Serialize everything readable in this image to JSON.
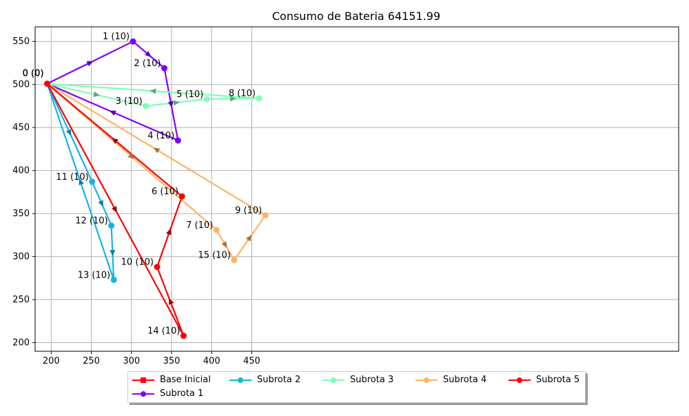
{
  "chart_data": {
    "type": "line",
    "title": "Consumo de Bateria 64151.99",
    "xlabel": "",
    "ylabel": "",
    "xlim": [
      180,
      982
    ],
    "ylim": [
      190,
      567
    ],
    "x_ticks": [
      200,
      250,
      300,
      350,
      400,
      450
    ],
    "y_ticks": [
      200,
      250,
      300,
      350,
      400,
      450,
      500,
      550
    ],
    "grid": true,
    "legend_position": "bottom-center",
    "base": {
      "name": "Base Inicial",
      "color": "#ff0000",
      "x": 195,
      "y": 501,
      "labels": [
        "0 (0)",
        "0 (0)",
        "0 (0)",
        "0 (0)",
        "0 (0)"
      ]
    },
    "series": [
      {
        "name": "Subrota 1",
        "color": "#7f00ff",
        "arrow_color": "#5a00b4",
        "points": [
          {
            "x": 195,
            "y": 501,
            "label": ""
          },
          {
            "x": 302,
            "y": 550,
            "label": "1 (10)"
          },
          {
            "x": 341,
            "y": 519,
            "label": "2 (10)"
          },
          {
            "x": 358,
            "y": 435,
            "label": "4 (10)"
          },
          {
            "x": 195,
            "y": 501,
            "label": ""
          }
        ]
      },
      {
        "name": "Subrota 2",
        "color": "#14b4e6",
        "arrow_color": "#0e7ea3",
        "points": [
          {
            "x": 195,
            "y": 501,
            "label": ""
          },
          {
            "x": 251,
            "y": 387,
            "label": "11 (10)"
          },
          {
            "x": 275,
            "y": 336,
            "label": "12 (10)"
          },
          {
            "x": 278,
            "y": 273,
            "label": "13 (10)"
          },
          {
            "x": 195,
            "y": 501,
            "label": ""
          }
        ]
      },
      {
        "name": "Subrota 3",
        "color": "#80ffb4",
        "arrow_color": "#5aaa7f",
        "points": [
          {
            "x": 195,
            "y": 501,
            "label": ""
          },
          {
            "x": 318,
            "y": 475,
            "label": "3 (10)"
          },
          {
            "x": 394,
            "y": 483,
            "label": "5 (10)"
          },
          {
            "x": 459,
            "y": 484,
            "label": "8 (10)"
          },
          {
            "x": 195,
            "y": 501,
            "label": ""
          }
        ]
      },
      {
        "name": "Subrota 4",
        "color": "#ffb464",
        "arrow_color": "#a87340",
        "points": [
          {
            "x": 195,
            "y": 501,
            "label": ""
          },
          {
            "x": 406,
            "y": 331,
            "label": "7 (10)"
          },
          {
            "x": 428,
            "y": 296,
            "label": "15 (10)"
          },
          {
            "x": 467,
            "y": 348,
            "label": "9 (10)"
          },
          {
            "x": 195,
            "y": 501,
            "label": ""
          }
        ]
      },
      {
        "name": "Subrota 5",
        "color": "#ff0000",
        "arrow_color": "#a00000",
        "points": [
          {
            "x": 195,
            "y": 501,
            "label": ""
          },
          {
            "x": 365,
            "y": 208,
            "label": "14 (10)"
          },
          {
            "x": 332,
            "y": 288,
            "label": "10 (10)"
          },
          {
            "x": 363,
            "y": 370,
            "label": "6 (10)"
          },
          {
            "x": 195,
            "y": 501,
            "label": ""
          }
        ]
      }
    ]
  },
  "legend": {
    "items": [
      "Base Inicial",
      "Subrota 1",
      "Subrota 2",
      "Subrota 3",
      "Subrota 4",
      "Subrota 5"
    ]
  }
}
